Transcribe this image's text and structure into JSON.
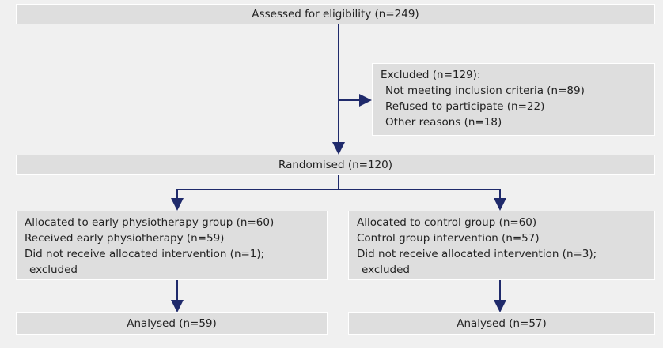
{
  "nodes": [
    {
      "label": "Assessed for eligibility (n=249)"
    },
    {
      "label": "Excluded (n=129):",
      "items": [
        "Not meeting inclusion criteria (n=89)",
        "Refused to participate (n=22)",
        "Other reasons (n=18)"
      ]
    },
    {
      "label": "Randomised (n=120)"
    },
    {
      "label": "Allocated to early physiotherapy group (n=60)",
      "items": [
        "Received early physiotherapy (n=59)",
        "Did not receive allocated intervention (n=1); excluded"
      ]
    },
    {
      "label": "Allocated to control group (n=60)",
      "items": [
        "Control group intervention (n=57)",
        "Did not receive allocated intervention (n=3); excluded"
      ]
    },
    {
      "label": "Analysed (n=59)"
    },
    {
      "label": "Analysed (n=57)"
    }
  ]
}
